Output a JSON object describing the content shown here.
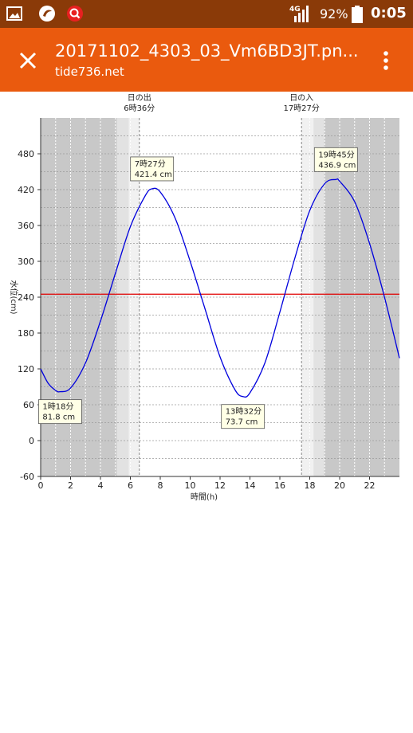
{
  "status_bar": {
    "network_label": "4G",
    "battery_percent": "92%",
    "time": "0:05",
    "icons": [
      "gallery-icon",
      "app-icon",
      "search-app-icon",
      "signal-icon",
      "battery-icon"
    ]
  },
  "app_bar": {
    "title": "20171102_4303_03_Vm6BD3JT.pn...",
    "subtitle": "tide736.net",
    "icons": [
      "close-icon",
      "more-vert-icon"
    ],
    "bg_color": "#ea5a0e",
    "status_color": "#8a3a08"
  },
  "chart_data": {
    "type": "line",
    "xlabel": "時間(h)",
    "ylabel": "水位(cm)",
    "xlim": [
      0,
      24
    ],
    "ylim": [
      -60,
      540
    ],
    "xticks": [
      0,
      2,
      4,
      6,
      8,
      10,
      12,
      14,
      16,
      18,
      20,
      22
    ],
    "yticks": [
      -60,
      0,
      60,
      120,
      180,
      240,
      300,
      360,
      420,
      480
    ],
    "grid": true,
    "reference_line": {
      "y": 245,
      "color": "#e00000"
    },
    "sun_events": [
      {
        "name": "日の出",
        "time": "6時36分",
        "hour": 6.6
      },
      {
        "name": "日の入",
        "time": "17時27分",
        "hour": 17.45
      }
    ],
    "extremes": [
      {
        "time": "1時18分",
        "value": "81.8 cm",
        "x": 1.3,
        "y": 81.8
      },
      {
        "time": "7時27分",
        "value": "421.4 cm",
        "x": 7.45,
        "y": 421.4
      },
      {
        "time": "13時32分",
        "value": "73.7 cm",
        "x": 13.53,
        "y": 73.7
      },
      {
        "time": "19時45分",
        "value": "436.9 cm",
        "x": 19.75,
        "y": 436.9
      }
    ],
    "series": [
      {
        "color": "#0000dd",
        "x": [
          0,
          0.5,
          1,
          1.3,
          2,
          3,
          4,
          5,
          6,
          7,
          7.45,
          8,
          9,
          10,
          11,
          12,
          13,
          13.53,
          14,
          15,
          16,
          17,
          18,
          19,
          19.75,
          20,
          21,
          22,
          23,
          24
        ],
        "y": [
          120,
          96,
          84,
          81.8,
          88,
          130,
          200,
          280,
          358,
          410,
          421.4,
          416,
          372,
          300,
          220,
          140,
          85,
          73.7,
          80,
          130,
          215,
          305,
          385,
          430,
          436.9,
          434,
          400,
          330,
          240,
          138
        ]
      }
    ]
  }
}
